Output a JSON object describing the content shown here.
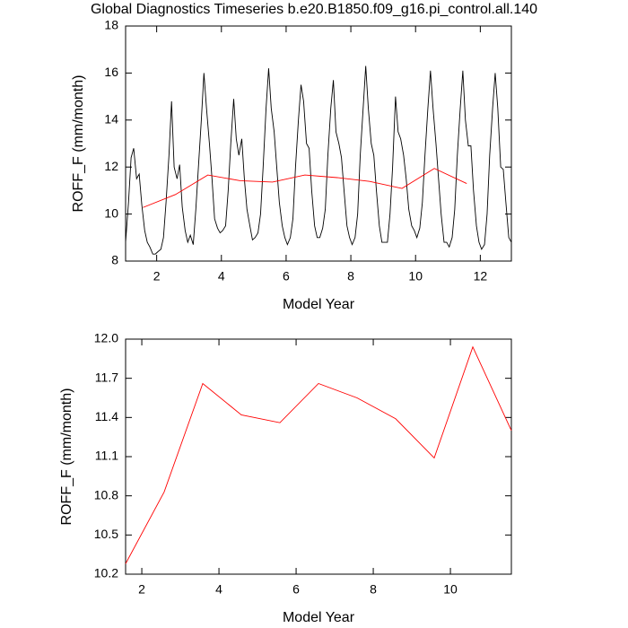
{
  "chart_data": [
    {
      "type": "line",
      "title": "Global Diagnostics Timeseries b.e20.B1850.f09_g16.pi_control.all.140",
      "xlabel": "Model Year",
      "ylabel": "ROFF_F (mm/month)",
      "xlim": [
        1.04,
        12.96
      ],
      "xticks": [
        2,
        4,
        6,
        8,
        10,
        12
      ],
      "ylim": [
        8,
        18
      ],
      "yticks": [
        8,
        10,
        12,
        14,
        16,
        18
      ],
      "series": [
        {
          "color": "#000000",
          "x": [
            1.04,
            1.13,
            1.21,
            1.29,
            1.38,
            1.46,
            1.54,
            1.63,
            1.71,
            1.79,
            1.88,
            1.96,
            2.04,
            2.13,
            2.21,
            2.29,
            2.38,
            2.46,
            2.54,
            2.63,
            2.71,
            2.79,
            2.88,
            2.96,
            3.04,
            3.13,
            3.21,
            3.29,
            3.38,
            3.46,
            3.54,
            3.63,
            3.71,
            3.79,
            3.88,
            3.96,
            4.04,
            4.13,
            4.21,
            4.29,
            4.38,
            4.46,
            4.54,
            4.63,
            4.71,
            4.79,
            4.88,
            4.96,
            5.04,
            5.13,
            5.21,
            5.29,
            5.38,
            5.46,
            5.54,
            5.63,
            5.71,
            5.79,
            5.88,
            5.96,
            6.04,
            6.13,
            6.21,
            6.29,
            6.38,
            6.46,
            6.54,
            6.63,
            6.71,
            6.79,
            6.88,
            6.96,
            7.04,
            7.13,
            7.21,
            7.29,
            7.38,
            7.46,
            7.54,
            7.63,
            7.71,
            7.79,
            7.88,
            7.96,
            8.04,
            8.13,
            8.21,
            8.29,
            8.38,
            8.46,
            8.54,
            8.63,
            8.71,
            8.79,
            8.88,
            8.96,
            9.04,
            9.13,
            9.21,
            9.29,
            9.38,
            9.46,
            9.54,
            9.63,
            9.71,
            9.79,
            9.88,
            9.96,
            10.04,
            10.13,
            10.21,
            10.29,
            10.38,
            10.46,
            10.54,
            10.63,
            10.71,
            10.79,
            10.88,
            10.96,
            11.04,
            11.13,
            11.21,
            11.29,
            11.38,
            11.46,
            11.54,
            11.63,
            11.71,
            11.79,
            11.88,
            11.96,
            12.04,
            12.13,
            12.21,
            12.29,
            12.38,
            12.46,
            12.54,
            12.63,
            12.71,
            12.79,
            12.88,
            12.96
          ],
          "values": [
            8.8,
            10.5,
            12.4,
            12.8,
            11.5,
            11.7,
            10.4,
            9.3,
            8.8,
            8.6,
            8.3,
            8.3,
            8.4,
            8.5,
            9.0,
            10.5,
            12.5,
            14.8,
            12.0,
            11.5,
            12.1,
            10.3,
            9.3,
            8.8,
            9.1,
            8.7,
            10.2,
            12.0,
            14.0,
            16.0,
            14.5,
            13.0,
            11.5,
            9.8,
            9.4,
            9.2,
            9.3,
            9.5,
            11.0,
            13.0,
            14.9,
            13.2,
            12.5,
            13.2,
            11.5,
            10.2,
            9.5,
            8.9,
            9.0,
            9.2,
            10.0,
            12.0,
            14.5,
            16.2,
            14.5,
            13.5,
            12.0,
            10.5,
            9.5,
            9.0,
            8.7,
            9.0,
            9.8,
            12.0,
            14.0,
            15.5,
            14.8,
            13.0,
            12.8,
            11.0,
            9.5,
            9.0,
            9.0,
            9.4,
            10.2,
            12.5,
            14.5,
            15.7,
            13.5,
            13.0,
            12.4,
            11.0,
            9.5,
            9.0,
            8.7,
            9.0,
            10.0,
            12.5,
            14.5,
            16.3,
            14.5,
            13.0,
            12.5,
            11.0,
            9.5,
            8.8,
            8.8,
            8.8,
            10.0,
            12.0,
            15.0,
            13.5,
            13.2,
            12.5,
            11.5,
            10.2,
            9.5,
            9.3,
            9.0,
            9.4,
            10.5,
            12.5,
            14.5,
            16.1,
            14.5,
            13.0,
            11.5,
            10.0,
            8.8,
            8.8,
            8.6,
            9.0,
            10.2,
            12.5,
            14.5,
            16.1,
            14.0,
            12.9,
            12.9,
            11.0,
            9.5,
            8.8,
            8.5,
            8.7,
            10.0,
            12.5,
            14.5,
            16.0,
            14.5,
            12.0,
            11.9,
            10.5,
            9.0,
            8.8
          ]
        },
        {
          "color": "#ff0000",
          "x": [
            1.58,
            2.58,
            3.58,
            4.58,
            5.58,
            6.58,
            7.58,
            8.58,
            9.58,
            10.58,
            11.58
          ],
          "values": [
            10.28,
            10.83,
            11.66,
            11.42,
            11.36,
            11.66,
            11.55,
            11.39,
            11.09,
            11.94,
            11.3
          ]
        }
      ]
    },
    {
      "type": "line",
      "xlabel": "Model Year",
      "ylabel": "ROFF_F (mm/month)",
      "xlim": [
        1.58,
        11.58
      ],
      "xticks": [
        2,
        4,
        6,
        8,
        10
      ],
      "ylim": [
        10.2,
        12.0
      ],
      "yticks": [
        10.2,
        10.5,
        10.8,
        11.1,
        11.4,
        11.7,
        {
          "value": 12.0,
          "label": "12.0"
        }
      ],
      "series": [
        {
          "color": "#ff0000",
          "x": [
            1.58,
            2.58,
            3.58,
            4.58,
            5.58,
            6.58,
            7.58,
            8.58,
            9.58,
            10.58,
            11.58
          ],
          "values": [
            10.28,
            10.83,
            11.66,
            11.42,
            11.36,
            11.66,
            11.55,
            11.39,
            11.09,
            11.94,
            11.3
          ]
        }
      ]
    }
  ]
}
